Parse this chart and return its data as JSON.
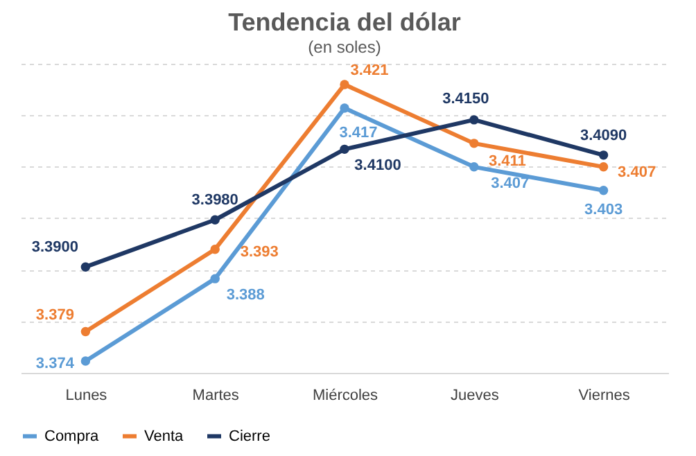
{
  "chart_data": {
    "type": "line",
    "title": "Tendencia del dólar",
    "subtitle": "(en soles)",
    "categories": [
      "Lunes",
      "Martes",
      "Miércoles",
      "Jueves",
      "Viernes"
    ],
    "series": [
      {
        "name": "Compra",
        "color": "#5b9bd5",
        "values": [
          3.374,
          3.388,
          3.417,
          3.407,
          3.403
        ],
        "value_labels": [
          "3.374",
          "3.388",
          "3.417",
          "3.407",
          "3.403"
        ]
      },
      {
        "name": "Venta",
        "color": "#ed7d31",
        "values": [
          3.379,
          3.393,
          3.421,
          3.411,
          3.407
        ],
        "value_labels": [
          "3.379",
          "3.393",
          "3.421",
          "3.411",
          "3.407"
        ]
      },
      {
        "name": "Cierre",
        "color": "#1f3864",
        "values": [
          3.39,
          3.398,
          3.41,
          3.415,
          3.409
        ],
        "value_labels": [
          "3.3900",
          "3.3980",
          "3.4100",
          "3.4150",
          "3.4090"
        ]
      }
    ],
    "ylim": [
      3.372,
      3.425
    ],
    "yticks": [
      {
        "value": 3.3808,
        "label": null
      },
      {
        "value": 3.3895,
        "label": null
      },
      {
        "value": 3.3983,
        "label": null
      },
      {
        "value": 3.4071,
        "label": null
      },
      {
        "value": 3.4158,
        "label": null
      },
      {
        "value": 3.4245,
        "label": null
      }
    ],
    "tick_labels": "x",
    "grid": "y",
    "legend": "bottom",
    "marker": "circle",
    "line_style": "solid"
  }
}
